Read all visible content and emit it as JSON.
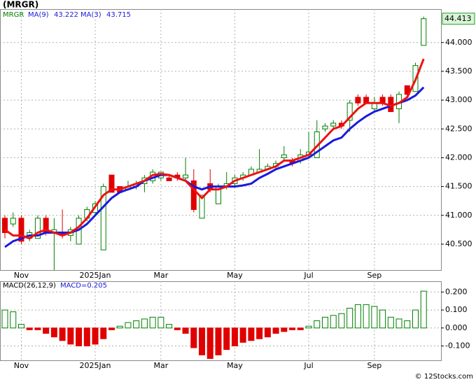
{
  "chart_data": [
    {
      "type": "candlestick",
      "title": "(MRGR)",
      "symbol": "MRGR",
      "categories": [
        null,
        null,
        "Nov",
        null,
        null,
        null,
        null,
        null,
        null,
        null,
        null,
        "2025Jan",
        null,
        null,
        null,
        null,
        null,
        null,
        null,
        "Mar",
        null,
        null,
        null,
        null,
        null,
        null,
        null,
        null,
        "May",
        null,
        null,
        null,
        null,
        null,
        null,
        null,
        null,
        "Jul",
        null,
        null,
        null,
        null,
        null,
        null,
        null,
        "Sep",
        null,
        null,
        null,
        null,
        null,
        null
      ],
      "open": [
        40.95,
        40.85,
        40.95,
        40.6,
        40.6,
        40.95,
        40.7,
        40.7,
        40.65,
        40.5,
        40.95,
        41.05,
        40.4,
        41.7,
        41.5,
        41.45,
        41.5,
        41.55,
        41.6,
        41.65,
        41.65,
        41.7,
        41.65,
        41.6,
        40.95,
        41.55,
        41.2,
        41.5,
        41.55,
        41.65,
        41.7,
        41.75,
        41.8,
        41.85,
        42.0,
        41.95,
        41.95,
        42.05,
        42.0,
        42.5,
        42.55,
        42.6,
        42.65,
        43.05,
        43.05,
        42.85,
        43.05,
        43.05,
        42.85,
        43.25,
        43.15,
        43.95
      ],
      "high": [
        41.0,
        41.05,
        41.0,
        40.75,
        41.0,
        41.0,
        40.95,
        41.1,
        40.8,
        41.0,
        41.15,
        41.25,
        41.55,
        41.7,
        41.5,
        41.6,
        41.6,
        41.7,
        41.8,
        41.75,
        41.7,
        41.75,
        42.0,
        41.8,
        41.35,
        41.8,
        41.55,
        41.75,
        41.7,
        41.75,
        41.85,
        42.15,
        41.9,
        41.95,
        42.2,
        42.0,
        42.15,
        42.45,
        42.65,
        42.6,
        42.65,
        42.65,
        43.0,
        43.1,
        43.1,
        43.05,
        43.1,
        43.1,
        43.15,
        43.25,
        43.65,
        44.45
      ],
      "low": [
        40.6,
        40.8,
        40.5,
        40.55,
        40.6,
        40.65,
        40.05,
        40.6,
        40.55,
        40.5,
        40.9,
        41.0,
        40.4,
        41.4,
        41.4,
        41.45,
        41.45,
        41.4,
        41.55,
        41.6,
        41.6,
        41.6,
        41.6,
        41.05,
        40.95,
        41.4,
        41.2,
        41.45,
        41.5,
        41.6,
        41.7,
        41.75,
        41.8,
        41.8,
        41.95,
        41.85,
        41.9,
        42.0,
        42.0,
        42.45,
        42.5,
        42.5,
        42.45,
        42.9,
        42.95,
        42.8,
        42.9,
        42.8,
        42.6,
        43.05,
        43.15,
        43.95
      ],
      "close": [
        40.7,
        40.95,
        40.55,
        40.7,
        40.95,
        40.7,
        40.75,
        40.65,
        40.75,
        40.95,
        41.1,
        41.2,
        41.5,
        41.4,
        41.4,
        41.5,
        41.55,
        41.65,
        41.75,
        41.75,
        41.6,
        41.65,
        41.7,
        41.1,
        41.35,
        41.45,
        41.5,
        41.55,
        41.65,
        41.7,
        41.8,
        41.8,
        41.85,
        41.9,
        42.05,
        41.9,
        42.05,
        42.1,
        42.45,
        42.55,
        42.6,
        42.55,
        42.95,
        42.95,
        42.95,
        42.95,
        42.95,
        42.8,
        43.1,
        43.1,
        43.6,
        44.413
      ],
      "up_color": "#008000",
      "down_color": "#e00000",
      "series": [
        {
          "name": "MA(9)",
          "color": "#1a1adc",
          "last": 43.222,
          "values": [
            40.45,
            40.55,
            40.6,
            40.65,
            40.65,
            40.7,
            40.7,
            40.7,
            40.7,
            40.75,
            40.85,
            41.0,
            41.15,
            41.3,
            41.4,
            41.45,
            41.5,
            41.6,
            41.65,
            41.7,
            41.7,
            41.65,
            41.6,
            41.5,
            41.45,
            41.5,
            41.5,
            41.5,
            41.5,
            41.52,
            41.55,
            41.65,
            41.72,
            41.8,
            41.85,
            41.9,
            41.95,
            42.0,
            42.1,
            42.2,
            42.3,
            42.35,
            42.5,
            42.62,
            42.72,
            42.8,
            42.85,
            42.9,
            42.95,
            43.0,
            43.08,
            43.222
          ]
        },
        {
          "name": "MA(3)",
          "color": "#ee1111",
          "last": 43.715,
          "values": [
            40.75,
            40.65,
            40.65,
            40.6,
            40.7,
            40.75,
            40.7,
            40.65,
            40.7,
            40.8,
            40.95,
            41.15,
            41.35,
            41.45,
            41.45,
            41.5,
            41.55,
            41.6,
            41.7,
            41.72,
            41.7,
            41.65,
            41.6,
            41.45,
            41.3,
            41.45,
            41.45,
            41.5,
            41.6,
            41.65,
            41.7,
            41.75,
            41.8,
            41.85,
            41.95,
            41.95,
            42.0,
            42.05,
            42.2,
            42.35,
            42.5,
            42.55,
            42.7,
            42.85,
            42.95,
            42.95,
            42.95,
            42.9,
            42.95,
            43.05,
            43.35,
            43.715
          ]
        }
      ],
      "last_price": 44.413,
      "ylim": [
        40.05,
        44.58
      ],
      "yticks": [
        {
          "value": 44,
          "label": "44.000"
        },
        {
          "value": 43.5,
          "label": "43.500"
        },
        {
          "value": 43,
          "label": "43.000"
        },
        {
          "value": 42.5,
          "label": "42.500"
        },
        {
          "value": 42,
          "label": "42.000"
        },
        {
          "value": 41.5,
          "label": "41.500"
        },
        {
          "value": 41,
          "label": "41.000"
        },
        {
          "value": 40.5,
          "label": "40.500"
        }
      ],
      "grid": true
    },
    {
      "type": "bar",
      "legend": "MACD(26,12,9)",
      "value_label": "MACD=0.205",
      "categories": [
        null,
        null,
        "Nov",
        null,
        null,
        null,
        null,
        null,
        null,
        null,
        null,
        "2025Jan",
        null,
        null,
        null,
        null,
        null,
        null,
        null,
        "Mar",
        null,
        null,
        null,
        null,
        null,
        null,
        null,
        null,
        "May",
        null,
        null,
        null,
        null,
        null,
        null,
        null,
        null,
        "Jul",
        null,
        null,
        null,
        null,
        null,
        null,
        null,
        "Sep",
        null,
        null,
        null,
        null,
        null,
        null
      ],
      "values": [
        0.1,
        0.09,
        0.02,
        -0.01,
        -0.01,
        -0.03,
        -0.05,
        -0.07,
        -0.09,
        -0.1,
        -0.1,
        -0.09,
        -0.06,
        -0.01,
        0.01,
        0.03,
        0.04,
        0.05,
        0.06,
        0.06,
        0.02,
        -0.01,
        -0.03,
        -0.11,
        -0.15,
        -0.17,
        -0.15,
        -0.12,
        -0.1,
        -0.08,
        -0.07,
        -0.06,
        -0.05,
        -0.03,
        -0.02,
        -0.01,
        -0.01,
        0.01,
        0.04,
        0.06,
        0.07,
        0.08,
        0.11,
        0.13,
        0.13,
        0.12,
        0.1,
        0.06,
        0.05,
        0.04,
        0.1,
        0.205
      ],
      "pos_color": "#008000",
      "neg_color": "#e00000",
      "ylim": [
        -0.18,
        0.26
      ],
      "yticks": [
        {
          "value": 0.2,
          "label": "0.200"
        },
        {
          "value": 0.1,
          "label": "0.100"
        },
        {
          "value": 0,
          "label": "0.000"
        },
        {
          "value": -0.1,
          "label": "-0.100"
        }
      ],
      "grid": true
    }
  ],
  "footer": "© 12Stocks.com"
}
